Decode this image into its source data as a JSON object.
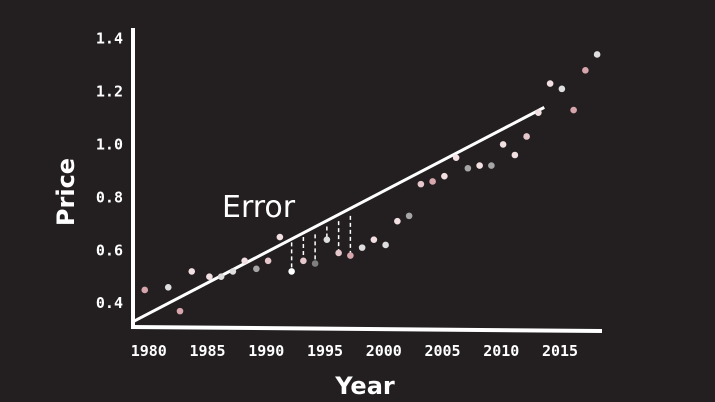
{
  "chart_data": {
    "type": "scatter",
    "xlabel": "Year",
    "ylabel": "Price",
    "xlim": [
      1979,
      2019
    ],
    "ylim": [
      0.31,
      1.44
    ],
    "xticks": [
      "1980",
      "1985",
      "1990",
      "1995",
      "2000",
      "2005",
      "2010",
      "2015"
    ],
    "yticks": [
      "0.4",
      "0.6",
      "0.8",
      "1.0",
      "1.2",
      "1.4"
    ],
    "annotation": "Error",
    "fit_line": {
      "x": [
        1979,
        2014
      ],
      "y": [
        0.33,
        1.14
      ]
    },
    "points": [
      {
        "x": 1980.0,
        "y": 0.45,
        "color": "#d7a6ac"
      },
      {
        "x": 1982.0,
        "y": 0.46,
        "color": "#dedede"
      },
      {
        "x": 1983.0,
        "y": 0.37,
        "color": "#d7a6ac"
      },
      {
        "x": 1984.0,
        "y": 0.52,
        "color": "#f2dfe2"
      },
      {
        "x": 1985.5,
        "y": 0.5,
        "color": "#f2dfe2"
      },
      {
        "x": 1986.5,
        "y": 0.5,
        "color": "#dedede"
      },
      {
        "x": 1987.5,
        "y": 0.52,
        "color": "#dedede"
      },
      {
        "x": 1988.5,
        "y": 0.56,
        "color": "#f2dfe2"
      },
      {
        "x": 1989.5,
        "y": 0.53,
        "color": "#a6a6a6"
      },
      {
        "x": 1990.5,
        "y": 0.56,
        "color": "#e5c7cc"
      },
      {
        "x": 1991.5,
        "y": 0.65,
        "color": "#f2dfe2"
      },
      {
        "x": 1992.5,
        "y": 0.52,
        "color": "#ffffff"
      },
      {
        "x": 1993.5,
        "y": 0.56,
        "color": "#e5c7cc"
      },
      {
        "x": 1994.5,
        "y": 0.55,
        "color": "#7f7f7f"
      },
      {
        "x": 1995.5,
        "y": 0.64,
        "color": "#dedede"
      },
      {
        "x": 1996.5,
        "y": 0.59,
        "color": "#e5c7cc"
      },
      {
        "x": 1997.5,
        "y": 0.58,
        "color": "#d7a6ac"
      },
      {
        "x": 1998.5,
        "y": 0.61,
        "color": "#dedede"
      },
      {
        "x": 1999.5,
        "y": 0.64,
        "color": "#f2dfe2"
      },
      {
        "x": 2000.5,
        "y": 0.62,
        "color": "#dedede"
      },
      {
        "x": 2001.5,
        "y": 0.71,
        "color": "#f2dfe2"
      },
      {
        "x": 2002.5,
        "y": 0.73,
        "color": "#a6a6a6"
      },
      {
        "x": 2003.5,
        "y": 0.85,
        "color": "#e5c7cc"
      },
      {
        "x": 2004.5,
        "y": 0.86,
        "color": "#d7a6ac"
      },
      {
        "x": 2005.5,
        "y": 0.88,
        "color": "#f2dfe2"
      },
      {
        "x": 2006.5,
        "y": 0.95,
        "color": "#f2dfe2"
      },
      {
        "x": 2007.5,
        "y": 0.91,
        "color": "#a6a6a6"
      },
      {
        "x": 2008.5,
        "y": 0.92,
        "color": "#f2dfe2"
      },
      {
        "x": 2009.5,
        "y": 0.92,
        "color": "#a6a6a6"
      },
      {
        "x": 2010.5,
        "y": 1.0,
        "color": "#f2dfe2"
      },
      {
        "x": 2011.5,
        "y": 0.96,
        "color": "#f2dfe2"
      },
      {
        "x": 2012.5,
        "y": 1.03,
        "color": "#e5c7cc"
      },
      {
        "x": 2013.5,
        "y": 1.12,
        "color": "#f2dfe2"
      },
      {
        "x": 2014.5,
        "y": 1.23,
        "color": "#f2dfe2"
      },
      {
        "x": 2015.5,
        "y": 1.21,
        "color": "#dedede"
      },
      {
        "x": 2016.5,
        "y": 1.13,
        "color": "#d7a6ac"
      },
      {
        "x": 2017.5,
        "y": 1.28,
        "color": "#d7a6ac"
      },
      {
        "x": 2018.5,
        "y": 1.34,
        "color": "#dedede"
      }
    ],
    "error_segments": [
      {
        "x": 1992.5,
        "y_point": 0.52,
        "y_line": 0.63
      },
      {
        "x": 1993.5,
        "y_point": 0.56,
        "y_line": 0.65
      },
      {
        "x": 1994.5,
        "y_point": 0.55,
        "y_line": 0.66
      },
      {
        "x": 1995.5,
        "y_point": 0.64,
        "y_line": 0.69
      },
      {
        "x": 1996.5,
        "y_point": 0.59,
        "y_line": 0.71
      },
      {
        "x": 1997.5,
        "y_point": 0.58,
        "y_line": 0.73
      }
    ],
    "background": "#231f20",
    "axis_color": "#ffffff",
    "grid": false,
    "legend": "none"
  }
}
